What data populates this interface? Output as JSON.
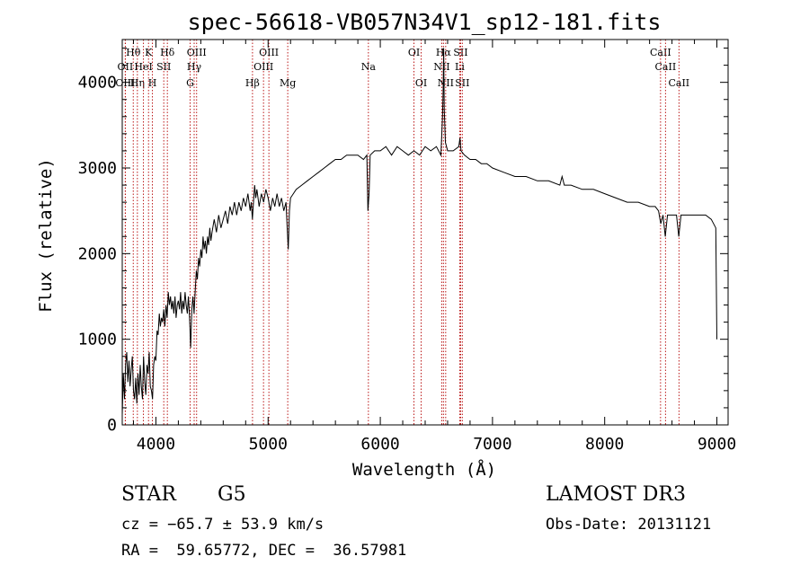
{
  "chart_data": {
    "type": "line",
    "title": "spec-56618-VB057N34V1_sp12-181.fits",
    "xlabel": "Wavelength (Å)",
    "ylabel": "Flux (relative)",
    "xlim": [
      3700,
      9100
    ],
    "ylim": [
      0,
      4500
    ],
    "xticks": [
      4000,
      5000,
      6000,
      7000,
      8000,
      9000
    ],
    "yticks": [
      0,
      1000,
      2000,
      3000,
      4000
    ],
    "x_minor_step": 200,
    "y_minor_step": 200,
    "line_color": "#000000",
    "marker_color": "#b40000",
    "series": [
      {
        "name": "flux",
        "points": [
          [
            3700,
            120
          ],
          [
            3710,
            600
          ],
          [
            3720,
            300
          ],
          [
            3730,
            700
          ],
          [
            3740,
            850
          ],
          [
            3750,
            500
          ],
          [
            3760,
            750
          ],
          [
            3770,
            450
          ],
          [
            3780,
            650
          ],
          [
            3790,
            800
          ],
          [
            3800,
            400
          ],
          [
            3810,
            300
          ],
          [
            3820,
            550
          ],
          [
            3830,
            250
          ],
          [
            3840,
            600
          ],
          [
            3850,
            350
          ],
          [
            3860,
            700
          ],
          [
            3870,
            450
          ],
          [
            3880,
            300
          ],
          [
            3890,
            800
          ],
          [
            3900,
            500
          ],
          [
            3910,
            350
          ],
          [
            3920,
            700
          ],
          [
            3930,
            600
          ],
          [
            3940,
            850
          ],
          [
            3950,
            450
          ],
          [
            3960,
            400
          ],
          [
            3970,
            300
          ],
          [
            3980,
            700
          ],
          [
            3990,
            800
          ],
          [
            4000,
            750
          ],
          [
            4010,
            1100
          ],
          [
            4020,
            1050
          ],
          [
            4030,
            1300
          ],
          [
            4040,
            1150
          ],
          [
            4050,
            1250
          ],
          [
            4060,
            1200
          ],
          [
            4070,
            1350
          ],
          [
            4080,
            1150
          ],
          [
            4090,
            1400
          ],
          [
            4100,
            1250
          ],
          [
            4110,
            1550
          ],
          [
            4120,
            1400
          ],
          [
            4130,
            1500
          ],
          [
            4140,
            1350
          ],
          [
            4150,
            1450
          ],
          [
            4160,
            1300
          ],
          [
            4170,
            1500
          ],
          [
            4180,
            1250
          ],
          [
            4190,
            1400
          ],
          [
            4200,
            1450
          ],
          [
            4210,
            1350
          ],
          [
            4220,
            1550
          ],
          [
            4230,
            1300
          ],
          [
            4240,
            1450
          ],
          [
            4250,
            1350
          ],
          [
            4260,
            1550
          ],
          [
            4270,
            1400
          ],
          [
            4280,
            1300
          ],
          [
            4290,
            1500
          ],
          [
            4300,
            1250
          ],
          [
            4310,
            900
          ],
          [
            4320,
            1350
          ],
          [
            4330,
            1500
          ],
          [
            4340,
            1300
          ],
          [
            4350,
            1550
          ],
          [
            4360,
            1800
          ],
          [
            4370,
            1700
          ],
          [
            4380,
            1950
          ],
          [
            4390,
            1850
          ],
          [
            4400,
            2050
          ],
          [
            4410,
            1950
          ],
          [
            4420,
            2200
          ],
          [
            4430,
            2050
          ],
          [
            4440,
            2150
          ],
          [
            4450,
            2000
          ],
          [
            4460,
            2200
          ],
          [
            4470,
            2100
          ],
          [
            4480,
            2300
          ],
          [
            4490,
            2150
          ],
          [
            4500,
            2250
          ],
          [
            4520,
            2400
          ],
          [
            4540,
            2250
          ],
          [
            4560,
            2450
          ],
          [
            4580,
            2300
          ],
          [
            4600,
            2400
          ],
          [
            4620,
            2500
          ],
          [
            4640,
            2350
          ],
          [
            4660,
            2550
          ],
          [
            4680,
            2450
          ],
          [
            4700,
            2600
          ],
          [
            4720,
            2450
          ],
          [
            4740,
            2600
          ],
          [
            4760,
            2500
          ],
          [
            4780,
            2650
          ],
          [
            4800,
            2550
          ],
          [
            4820,
            2700
          ],
          [
            4840,
            2500
          ],
          [
            4850,
            2600
          ],
          [
            4860,
            2400
          ],
          [
            4870,
            2600
          ],
          [
            4880,
            2800
          ],
          [
            4890,
            2650
          ],
          [
            4900,
            2750
          ],
          [
            4920,
            2550
          ],
          [
            4940,
            2700
          ],
          [
            4960,
            2600
          ],
          [
            4980,
            2750
          ],
          [
            5000,
            2650
          ],
          [
            5020,
            2500
          ],
          [
            5040,
            2650
          ],
          [
            5060,
            2550
          ],
          [
            5080,
            2700
          ],
          [
            5100,
            2550
          ],
          [
            5120,
            2650
          ],
          [
            5140,
            2500
          ],
          [
            5160,
            2600
          ],
          [
            5170,
            2300
          ],
          [
            5180,
            2050
          ],
          [
            5190,
            2500
          ],
          [
            5200,
            2650
          ],
          [
            5250,
            2750
          ],
          [
            5300,
            2800
          ],
          [
            5350,
            2850
          ],
          [
            5400,
            2900
          ],
          [
            5450,
            2950
          ],
          [
            5500,
            3000
          ],
          [
            5550,
            3050
          ],
          [
            5600,
            3100
          ],
          [
            5650,
            3100
          ],
          [
            5700,
            3150
          ],
          [
            5750,
            3150
          ],
          [
            5800,
            3150
          ],
          [
            5850,
            3100
          ],
          [
            5880,
            3150
          ],
          [
            5890,
            2500
          ],
          [
            5900,
            2700
          ],
          [
            5910,
            3150
          ],
          [
            5950,
            3200
          ],
          [
            6000,
            3200
          ],
          [
            6050,
            3250
          ],
          [
            6100,
            3150
          ],
          [
            6150,
            3250
          ],
          [
            6200,
            3200
          ],
          [
            6250,
            3150
          ],
          [
            6300,
            3200
          ],
          [
            6350,
            3150
          ],
          [
            6400,
            3250
          ],
          [
            6450,
            3200
          ],
          [
            6500,
            3250
          ],
          [
            6540,
            3150
          ],
          [
            6555,
            3600
          ],
          [
            6560,
            3900
          ],
          [
            6565,
            4400
          ],
          [
            6570,
            3700
          ],
          [
            6580,
            3300
          ],
          [
            6600,
            3200
          ],
          [
            6650,
            3200
          ],
          [
            6700,
            3250
          ],
          [
            6710,
            3350
          ],
          [
            6720,
            3200
          ],
          [
            6750,
            3150
          ],
          [
            6800,
            3100
          ],
          [
            6850,
            3100
          ],
          [
            6900,
            3050
          ],
          [
            6950,
            3050
          ],
          [
            7000,
            3000
          ],
          [
            7100,
            2950
          ],
          [
            7200,
            2900
          ],
          [
            7300,
            2900
          ],
          [
            7400,
            2850
          ],
          [
            7500,
            2850
          ],
          [
            7600,
            2800
          ],
          [
            7620,
            2900
          ],
          [
            7640,
            2800
          ],
          [
            7700,
            2800
          ],
          [
            7800,
            2750
          ],
          [
            7900,
            2750
          ],
          [
            8000,
            2700
          ],
          [
            8100,
            2650
          ],
          [
            8200,
            2600
          ],
          [
            8300,
            2600
          ],
          [
            8400,
            2550
          ],
          [
            8450,
            2550
          ],
          [
            8480,
            2500
          ],
          [
            8500,
            2350
          ],
          [
            8520,
            2450
          ],
          [
            8540,
            2200
          ],
          [
            8560,
            2450
          ],
          [
            8600,
            2450
          ],
          [
            8640,
            2450
          ],
          [
            8660,
            2200
          ],
          [
            8680,
            2450
          ],
          [
            8700,
            2450
          ],
          [
            8800,
            2450
          ],
          [
            8850,
            2450
          ],
          [
            8900,
            2450
          ],
          [
            8950,
            2400
          ],
          [
            8990,
            2300
          ],
          [
            9000,
            1000
          ]
        ]
      }
    ],
    "line_markers": [
      {
        "label": "Hθ",
        "wl": 3798,
        "row": 1
      },
      {
        "label": "OII",
        "wl": 3727,
        "row": 2
      },
      {
        "label": "OIII",
        "wl": 3727,
        "row": 3
      },
      {
        "label": "Hη",
        "wl": 3835,
        "row": 3
      },
      {
        "label": "HeI",
        "wl": 3889,
        "row": 2
      },
      {
        "label": "K",
        "wl": 3934,
        "row": 1
      },
      {
        "label": "H",
        "wl": 3969,
        "row": 3
      },
      {
        "label": "SII",
        "wl": 4070,
        "row": 2
      },
      {
        "label": "Hδ",
        "wl": 4102,
        "row": 1
      },
      {
        "label": "Hγ",
        "wl": 4341,
        "row": 2
      },
      {
        "label": "G",
        "wl": 4305,
        "row": 3
      },
      {
        "label": "OIII",
        "wl": 4363,
        "row": 1
      },
      {
        "label": "Hβ",
        "wl": 4861,
        "row": 3
      },
      {
        "label": "OIII",
        "wl": 4959,
        "row": 2
      },
      {
        "label": "OIII",
        "wl": 5007,
        "row": 1
      },
      {
        "label": "Mg",
        "wl": 5175,
        "row": 3
      },
      {
        "label": "Na",
        "wl": 5894,
        "row": 2
      },
      {
        "label": "OI",
        "wl": 6300,
        "row": 1
      },
      {
        "label": "OI",
        "wl": 6364,
        "row": 3
      },
      {
        "label": "NII",
        "wl": 6548,
        "row": 2
      },
      {
        "label": "Hα",
        "wl": 6563,
        "row": 1
      },
      {
        "label": "NII",
        "wl": 6583,
        "row": 3
      },
      {
        "label": "SII",
        "wl": 6716,
        "row": 1
      },
      {
        "label": "SII",
        "wl": 6731,
        "row": 3
      },
      {
        "label": "Li",
        "wl": 6708,
        "row": 2
      },
      {
        "label": "CaII",
        "wl": 8498,
        "row": 1
      },
      {
        "label": "CaII",
        "wl": 8542,
        "row": 2
      },
      {
        "label": "CaII",
        "wl": 8662,
        "row": 3
      }
    ]
  },
  "info": {
    "object_class": "STAR",
    "subclass": "G5",
    "survey": "LAMOST DR3",
    "redshift": "cz = −65.7 ± 53.9 km/s",
    "obs_date": "Obs-Date: 20131121",
    "coords": "RA =  59.65772, DEC =  36.57981"
  }
}
